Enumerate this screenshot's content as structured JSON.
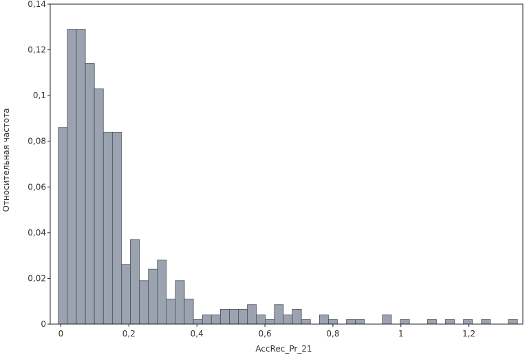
{
  "chart_data": {
    "type": "bar",
    "xlabel": "AccRec_Pr_21",
    "ylabel": "Относительная частота",
    "xlim": [
      -0.0313,
      1.3585
    ],
    "ylim": [
      0,
      0.14
    ],
    "x_ticks": [
      {
        "value": 0,
        "label": "0"
      },
      {
        "value": 0.2,
        "label": "0,2"
      },
      {
        "value": 0.4,
        "label": "0,4"
      },
      {
        "value": 0.6,
        "label": "0,6"
      },
      {
        "value": 0.8,
        "label": "0,8"
      },
      {
        "value": 1.0,
        "label": "1"
      },
      {
        "value": 1.2,
        "label": "1,2"
      }
    ],
    "y_ticks": [
      {
        "value": 0,
        "label": "0"
      },
      {
        "value": 0.02,
        "label": "0,02"
      },
      {
        "value": 0.04,
        "label": "0,04"
      },
      {
        "value": 0.06,
        "label": "0,06"
      },
      {
        "value": 0.08,
        "label": "0,08"
      },
      {
        "value": 0.1,
        "label": "0,1"
      },
      {
        "value": 0.12,
        "label": "0,12"
      },
      {
        "value": 0.14,
        "label": "0,14"
      }
    ],
    "bin_width": 0.0265,
    "bins": [
      {
        "x0": -0.0074,
        "value": 0.086
      },
      {
        "x0": 0.0191,
        "value": 0.129
      },
      {
        "x0": 0.0456,
        "value": 0.129
      },
      {
        "x0": 0.0721,
        "value": 0.114
      },
      {
        "x0": 0.0985,
        "value": 0.103
      },
      {
        "x0": 0.125,
        "value": 0.084
      },
      {
        "x0": 0.1515,
        "value": 0.084
      },
      {
        "x0": 0.1779,
        "value": 0.026
      },
      {
        "x0": 0.2044,
        "value": 0.037
      },
      {
        "x0": 0.2309,
        "value": 0.019
      },
      {
        "x0": 0.2574,
        "value": 0.024
      },
      {
        "x0": 0.2838,
        "value": 0.028
      },
      {
        "x0": 0.3103,
        "value": 0.011
      },
      {
        "x0": 0.3368,
        "value": 0.019
      },
      {
        "x0": 0.3632,
        "value": 0.011
      },
      {
        "x0": 0.3897,
        "value": 0.002
      },
      {
        "x0": 0.4162,
        "value": 0.004
      },
      {
        "x0": 0.4426,
        "value": 0.004
      },
      {
        "x0": 0.4691,
        "value": 0.0065
      },
      {
        "x0": 0.4956,
        "value": 0.0065
      },
      {
        "x0": 0.5221,
        "value": 0.0065
      },
      {
        "x0": 0.5485,
        "value": 0.0085
      },
      {
        "x0": 0.575,
        "value": 0.004
      },
      {
        "x0": 0.6015,
        "value": 0.002
      },
      {
        "x0": 0.6279,
        "value": 0.0085
      },
      {
        "x0": 0.6544,
        "value": 0.004
      },
      {
        "x0": 0.6809,
        "value": 0.0065
      },
      {
        "x0": 0.7074,
        "value": 0.002
      },
      {
        "x0": 0.7603,
        "value": 0.004
      },
      {
        "x0": 0.7868,
        "value": 0.002
      },
      {
        "x0": 0.8397,
        "value": 0.002
      },
      {
        "x0": 0.8662,
        "value": 0.002
      },
      {
        "x0": 0.9456,
        "value": 0.004
      },
      {
        "x0": 0.9985,
        "value": 0.002
      },
      {
        "x0": 1.0779,
        "value": 0.002
      },
      {
        "x0": 1.1309,
        "value": 0.002
      },
      {
        "x0": 1.1838,
        "value": 0.002
      },
      {
        "x0": 1.2368,
        "value": 0.002
      },
      {
        "x0": 1.3162,
        "value": 0.002
      }
    ],
    "grid": false,
    "legend": "none",
    "colors": {
      "bar_fill": "#9ba2b0",
      "bar_stroke": "#4a4f5a",
      "frame": "#222222"
    }
  }
}
